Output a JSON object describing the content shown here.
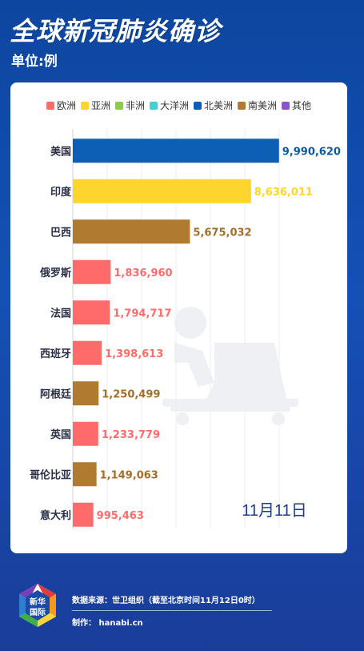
{
  "header": {
    "title": "全球新冠肺炎确诊",
    "unit_label": "单位:例"
  },
  "legend": [
    {
      "label": "欧洲",
      "color": "#ff6b6b"
    },
    {
      "label": "亚洲",
      "color": "#fed42f"
    },
    {
      "label": "非洲",
      "color": "#8dcc4a"
    },
    {
      "label": "大洋洲",
      "color": "#45cfd4"
    },
    {
      "label": "北美洲",
      "color": "#0d5fb5"
    },
    {
      "label": "南美洲",
      "color": "#b07a30"
    },
    {
      "label": "其他",
      "color": "#8b55c9"
    }
  ],
  "chart_data": {
    "type": "bar",
    "orientation": "horizontal",
    "date_label": "11月11日",
    "grid": true,
    "xlim": [
      0,
      10000000
    ],
    "categories": [
      "美国",
      "印度",
      "巴西",
      "俄罗斯",
      "法国",
      "西班牙",
      "阿根廷",
      "英国",
      "哥伦比亚",
      "意大利"
    ],
    "values": [
      9990620,
      8636011,
      5675032,
      1836960,
      1794717,
      1398613,
      1250499,
      1233779,
      1149063,
      995463
    ],
    "value_labels": [
      "9,990,620",
      "8,636,011",
      "5,675,032",
      "1,836,960",
      "1,794,717",
      "1,398,613",
      "1,250,499",
      "1,233,779",
      "1,149,063",
      "995,463"
    ],
    "regions": [
      "北美洲",
      "亚洲",
      "南美洲",
      "欧洲",
      "欧洲",
      "欧洲",
      "南美洲",
      "欧洲",
      "南美洲",
      "欧洲"
    ],
    "value_label_colors": [
      "#0b5aa8",
      "#fed42f",
      "#a26e2a",
      "#ff6b6b",
      "#ff6b6b",
      "#ff6b6b",
      "#a26e2a",
      "#ff6b6b",
      "#a26e2a",
      "#ff6b6b"
    ]
  },
  "footer": {
    "logo_text_line1": "新华",
    "logo_text_line2": "国际",
    "source": "数据来源：世卫组织（截至北京时间11月12日0时）",
    "maker": "制作： hanabi.cn"
  }
}
